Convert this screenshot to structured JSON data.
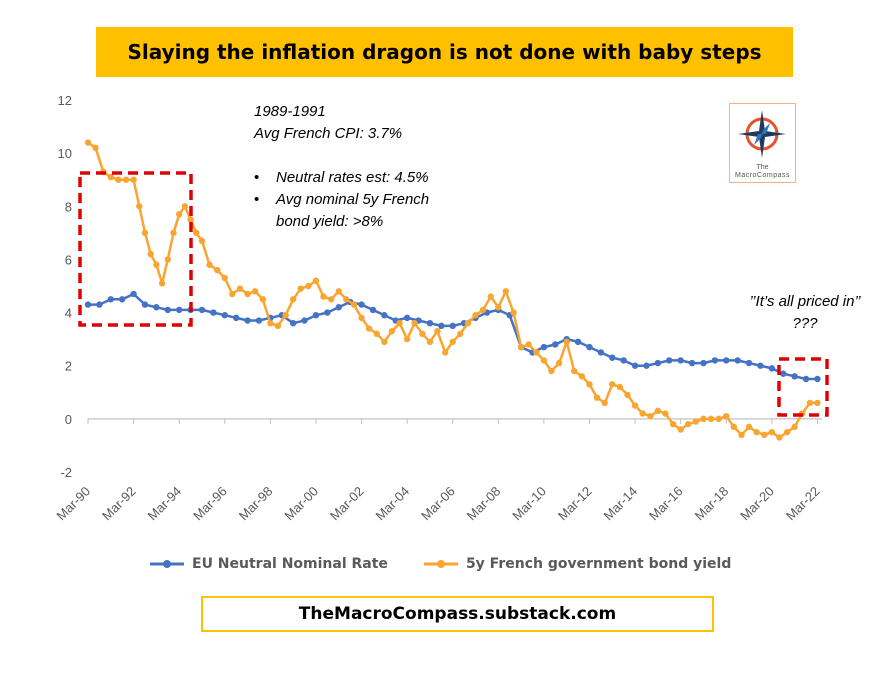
{
  "title": "Slaying the inflation dragon is not done with baby steps",
  "footer": "TheMacroCompass.substack.com",
  "annotations": {
    "period": "1989-1991",
    "cpi": "Avg French CPI: 3.7%",
    "bullets": [
      "Neutral rates est: 4.5%",
      "Avg nominal 5y French",
      "bond yield: >8%"
    ],
    "priced_in": "’’It’s all priced in’’",
    "question": "???"
  },
  "logo": {
    "line1": "The",
    "line2": "MacroCompass",
    "icon": "compass-star-icon"
  },
  "colors": {
    "neutral": "#4472C4",
    "yield": "#F8A531",
    "title_bg": "#FFC000",
    "box": "#E00000"
  },
  "chart_data": {
    "type": "line",
    "ylim": [
      -2,
      12
    ],
    "yticks": [
      -2,
      0,
      2,
      4,
      6,
      8,
      10,
      12
    ],
    "xlim": [
      1990.0,
      2022.2
    ],
    "xticks": [
      "Mar-90",
      "Mar-92",
      "Mar-94",
      "Mar-96",
      "Mar-98",
      "Mar-00",
      "Mar-02",
      "Mar-04",
      "Mar-06",
      "Mar-08",
      "Mar-10",
      "Mar-12",
      "Mar-14",
      "Mar-16",
      "Mar-18",
      "Mar-20",
      "Mar-22"
    ],
    "legend_position": "bottom",
    "series": [
      {
        "name": "EU Neutral Nominal Rate",
        "x": [
          1990.0,
          1990.5,
          1991.0,
          1991.5,
          1992.0,
          1992.5,
          1993.0,
          1993.5,
          1994.0,
          1994.5,
          1995.0,
          1995.5,
          1996.0,
          1996.5,
          1997.0,
          1997.5,
          1998.0,
          1998.5,
          1999.0,
          1999.5,
          2000.0,
          2000.5,
          2001.0,
          2001.5,
          2002.0,
          2002.5,
          2003.0,
          2003.5,
          2004.0,
          2004.5,
          2005.0,
          2005.5,
          2006.0,
          2006.5,
          2007.0,
          2007.5,
          2008.0,
          2008.5,
          2009.0,
          2009.5,
          2010.0,
          2010.5,
          2011.0,
          2011.5,
          2012.0,
          2012.5,
          2013.0,
          2013.5,
          2014.0,
          2014.5,
          2015.0,
          2015.5,
          2016.0,
          2016.5,
          2017.0,
          2017.5,
          2018.0,
          2018.5,
          2019.0,
          2019.5,
          2020.0,
          2020.5,
          2021.0,
          2021.5,
          2022.0
        ],
        "y": [
          4.3,
          4.3,
          4.5,
          4.5,
          4.7,
          4.3,
          4.2,
          4.1,
          4.1,
          4.1,
          4.1,
          4.0,
          3.9,
          3.8,
          3.7,
          3.7,
          3.8,
          3.9,
          3.6,
          3.7,
          3.9,
          4.0,
          4.2,
          4.4,
          4.3,
          4.1,
          3.9,
          3.7,
          3.8,
          3.7,
          3.6,
          3.5,
          3.5,
          3.6,
          3.8,
          4.0,
          4.1,
          3.9,
          2.7,
          2.5,
          2.7,
          2.8,
          3.0,
          2.9,
          2.7,
          2.5,
          2.3,
          2.2,
          2.0,
          2.0,
          2.1,
          2.2,
          2.2,
          2.1,
          2.1,
          2.2,
          2.2,
          2.2,
          2.1,
          2.0,
          1.9,
          1.7,
          1.6,
          1.5,
          1.5
        ]
      },
      {
        "name": "5y French government bond yield",
        "x": [
          1990.0,
          1990.33,
          1990.67,
          1991.0,
          1991.33,
          1991.67,
          1992.0,
          1992.25,
          1992.5,
          1992.75,
          1993.0,
          1993.25,
          1993.5,
          1993.75,
          1994.0,
          1994.25,
          1994.5,
          1994.75,
          1995.0,
          1995.33,
          1995.67,
          1996.0,
          1996.33,
          1996.67,
          1997.0,
          1997.33,
          1997.67,
          1998.0,
          1998.33,
          1998.67,
          1999.0,
          1999.33,
          1999.67,
          2000.0,
          2000.33,
          2000.67,
          2001.0,
          2001.33,
          2001.67,
          2002.0,
          2002.33,
          2002.67,
          2003.0,
          2003.33,
          2003.67,
          2004.0,
          2004.33,
          2004.67,
          2005.0,
          2005.33,
          2005.67,
          2006.0,
          2006.33,
          2006.67,
          2007.0,
          2007.33,
          2007.67,
          2008.0,
          2008.33,
          2008.67,
          2009.0,
          2009.33,
          2009.67,
          2010.0,
          2010.33,
          2010.67,
          2011.0,
          2011.33,
          2011.67,
          2012.0,
          2012.33,
          2012.67,
          2013.0,
          2013.33,
          2013.67,
          2014.0,
          2014.33,
          2014.67,
          2015.0,
          2015.33,
          2015.67,
          2016.0,
          2016.33,
          2016.67,
          2017.0,
          2017.33,
          2017.67,
          2018.0,
          2018.33,
          2018.67,
          2019.0,
          2019.33,
          2019.67,
          2020.0,
          2020.33,
          2020.67,
          2021.0,
          2021.33,
          2021.67,
          2022.0
        ],
        "y": [
          10.4,
          10.2,
          9.3,
          9.1,
          9.0,
          9.0,
          9.0,
          8.0,
          7.0,
          6.2,
          5.8,
          5.1,
          6.0,
          7.0,
          7.7,
          8.0,
          7.5,
          7.0,
          6.7,
          5.8,
          5.6,
          5.3,
          4.7,
          4.9,
          4.7,
          4.8,
          4.5,
          3.6,
          3.5,
          3.9,
          4.5,
          4.9,
          5.0,
          5.2,
          4.6,
          4.5,
          4.8,
          4.5,
          4.3,
          3.8,
          3.4,
          3.2,
          2.9,
          3.3,
          3.6,
          3.0,
          3.6,
          3.2,
          2.9,
          3.3,
          2.5,
          2.9,
          3.2,
          3.6,
          3.9,
          4.1,
          4.6,
          4.2,
          4.8,
          4.0,
          2.7,
          2.8,
          2.5,
          2.2,
          1.8,
          2.1,
          2.9,
          1.8,
          1.6,
          1.3,
          0.8,
          0.6,
          1.3,
          1.2,
          0.9,
          0.5,
          0.2,
          0.1,
          0.3,
          0.2,
          -0.2,
          -0.4,
          -0.2,
          -0.1,
          0.0,
          0.0,
          0.0,
          0.1,
          -0.3,
          -0.6,
          -0.3,
          -0.5,
          -0.6,
          -0.5,
          -0.7,
          -0.5,
          -0.3,
          0.2,
          0.6,
          0.6
        ]
      }
    ]
  }
}
